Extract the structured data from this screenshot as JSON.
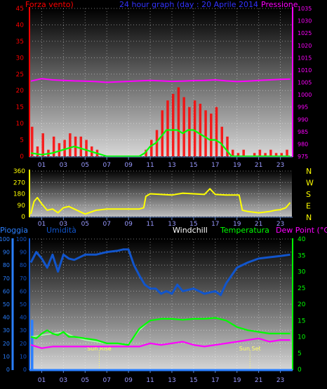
{
  "colors": {
    "wind": "#ff0000",
    "pressure": "#ff00ff",
    "title": "#3333ff",
    "direction": "#ffff00",
    "humidity": "#1155cc",
    "rain": "#2a7fff",
    "windchill": "#ffffff",
    "temperature": "#00ff00",
    "dewpoint": "#ff00ff",
    "sun": "#ffff66"
  },
  "chart_data": [
    {
      "type": "line",
      "title": "24 hour graph (day : 20 Aprile 2014",
      "left_label": "Forza vento)",
      "right_label": "Pressione",
      "ylim_left": [
        0,
        45
      ],
      "yticks_left": [
        "0",
        "5",
        "10",
        "15",
        "20",
        "25",
        "30",
        "35",
        "40",
        "45"
      ],
      "ylim_right": [
        975,
        1035
      ],
      "yticks_right": [
        "975",
        "980",
        "985",
        "990",
        "995",
        "1000",
        "1005",
        "1010",
        "1015",
        "1020",
        "1025",
        "1030",
        "1035"
      ],
      "x_ticks": [
        "01",
        "03",
        "05",
        "07",
        "09",
        "11",
        "13",
        "15",
        "17",
        "19",
        "21",
        "23"
      ],
      "series": [
        {
          "name": "Forza vento",
          "kind": "bars",
          "x": [
            0.0,
            0.5,
            1.0,
            1.5,
            2.0,
            2.5,
            3.0,
            3.5,
            4.0,
            4.5,
            5.0,
            5.5,
            6.0,
            6.5,
            7.0,
            7.5,
            8.0,
            8.5,
            9.0,
            9.5,
            10.0,
            10.5,
            11.0,
            11.5,
            12.0,
            12.5,
            13.0,
            13.5,
            14.0,
            14.5,
            15.0,
            15.5,
            16.0,
            16.5,
            17.0,
            17.5,
            18.0,
            18.5,
            19.0,
            19.5,
            20.0,
            20.5,
            21.0,
            21.5,
            22.0,
            22.5,
            23.0,
            23.5
          ],
          "y": [
            9,
            3,
            7,
            2,
            6,
            4,
            5,
            7,
            6,
            6,
            5,
            3,
            2,
            0,
            0,
            0,
            0,
            0,
            0,
            0,
            0,
            2,
            5,
            8,
            14,
            17,
            19,
            21,
            18,
            15,
            17,
            16,
            14,
            13,
            15,
            9,
            6,
            2,
            1,
            2,
            0,
            1,
            2,
            1,
            2,
            1,
            1,
            2
          ]
        },
        {
          "name": "Forza vento (media)",
          "kind": "line",
          "x": [
            0.0,
            1.0,
            2.0,
            3.0,
            4.0,
            5.0,
            6.0,
            7.0,
            8.0,
            9.0,
            10.0,
            10.5,
            11.0,
            11.5,
            12.0,
            12.5,
            13.0,
            13.5,
            14.0,
            14.5,
            15.0,
            15.5,
            16.0,
            16.5,
            17.0,
            17.5,
            18.0,
            18.5,
            19.0,
            20.0,
            21.0,
            22.0,
            23.0,
            23.9
          ],
          "y": [
            1,
            0.5,
            1,
            2,
            3,
            2,
            1,
            0,
            0,
            0,
            0,
            1,
            3,
            4,
            6,
            8,
            8,
            8,
            7,
            8,
            8,
            7,
            6,
            5,
            5,
            4,
            2,
            0,
            0,
            0,
            0,
            0,
            0,
            0
          ]
        },
        {
          "name": "Pressione",
          "axis": "right",
          "x": [
            0.0,
            1.0,
            2.0,
            3.0,
            4.0,
            5.0,
            6.0,
            7.0,
            8.0,
            9.0,
            10.0,
            11.0,
            12.0,
            13.0,
            14.0,
            15.0,
            16.0,
            17.0,
            18.0,
            19.0,
            20.0,
            21.0,
            22.0,
            23.0,
            23.9
          ],
          "y": [
            1005.5,
            1006.5,
            1006.0,
            1005.8,
            1005.6,
            1005.5,
            1005.3,
            1005.0,
            1005.2,
            1005.4,
            1005.6,
            1005.8,
            1005.6,
            1005.4,
            1005.5,
            1005.7,
            1005.8,
            1006.0,
            1005.6,
            1005.3,
            1005.5,
            1005.8,
            1006.0,
            1006.2,
            1006.3
          ]
        }
      ]
    },
    {
      "type": "line",
      "ylim": [
        0,
        360
      ],
      "yticks": [
        "0",
        "90",
        "180",
        "270",
        "360"
      ],
      "compass": [
        "N",
        "W",
        "S",
        "E",
        "N"
      ],
      "x_ticks": [
        "01",
        "03",
        "05",
        "07",
        "09",
        "11",
        "13",
        "15",
        "17",
        "19",
        "21",
        "23"
      ],
      "series": [
        {
          "name": "Direzione vento",
          "x": [
            0.0,
            0.3,
            0.6,
            1.0,
            1.5,
            2.0,
            2.5,
            3.0,
            3.5,
            4.0,
            4.5,
            5.0,
            6.0,
            7.0,
            8.0,
            9.0,
            10.0,
            10.4,
            10.6,
            11.0,
            12.0,
            13.0,
            14.0,
            15.0,
            16.0,
            16.5,
            17.0,
            18.0,
            19.0,
            19.2,
            19.5,
            20.0,
            21.0,
            22.0,
            22.5,
            23.0,
            23.5,
            23.9
          ],
          "y": [
            20,
            120,
            150,
            100,
            50,
            60,
            30,
            70,
            80,
            60,
            40,
            20,
            50,
            60,
            60,
            60,
            60,
            70,
            160,
            180,
            175,
            170,
            185,
            180,
            175,
            220,
            175,
            170,
            170,
            170,
            50,
            40,
            30,
            40,
            50,
            55,
            70,
            110
          ]
        }
      ]
    },
    {
      "type": "line",
      "labels": {
        "rain": "Pioggia",
        "humidity": "Umidità",
        "windchill": "Windchill",
        "temperature": "Temperatura",
        "dewpoint": "Dew Point (°C)"
      },
      "ylim_left": [
        0,
        100
      ],
      "yticks_left": [
        "0",
        "10",
        "20",
        "30",
        "40",
        "50",
        "60",
        "70",
        "80",
        "90",
        "100"
      ],
      "ylim_right": [
        0,
        40
      ],
      "yticks_right": [
        "0",
        "5",
        "10",
        "15",
        "20",
        "25",
        "30",
        "35",
        "40"
      ],
      "x_ticks": [
        "01",
        "03",
        "05",
        "07",
        "09",
        "11",
        "13",
        "15",
        "17",
        "19",
        "21",
        "23"
      ],
      "annotations": [
        {
          "text": "Sun Rise",
          "x": 6.3
        },
        {
          "text": "Sun Set",
          "x": 20.2
        }
      ],
      "series": [
        {
          "name": "Pioggia",
          "axis": "left",
          "kind": "bars",
          "x": [
            0.0,
            0.1
          ],
          "y": [
            38,
            38
          ]
        },
        {
          "name": "Umidità",
          "axis": "left",
          "x": [
            0.0,
            0.5,
            1.0,
            1.5,
            2.0,
            2.5,
            3.0,
            3.5,
            4.0,
            5.0,
            6.0,
            7.0,
            8.0,
            8.5,
            9.0,
            9.5,
            10.0,
            10.5,
            11.0,
            11.5,
            12.0,
            12.5,
            13.0,
            13.5,
            14.0,
            15.0,
            16.0,
            17.0,
            17.5,
            18.0,
            18.5,
            19.0,
            20.0,
            21.0,
            22.0,
            23.0,
            23.9
          ],
          "y": [
            82,
            90,
            85,
            78,
            88,
            75,
            88,
            85,
            84,
            88,
            88,
            90,
            91,
            92,
            92,
            80,
            72,
            65,
            62,
            62,
            58,
            60,
            58,
            65,
            60,
            62,
            58,
            60,
            57,
            66,
            72,
            78,
            82,
            85,
            86,
            87,
            88
          ]
        },
        {
          "name": "Windchill",
          "axis": "right",
          "x": [
            0.0,
            1.0,
            2.0,
            3.0,
            4.0,
            5.0,
            6.0,
            7.0,
            8.0,
            9.0,
            10.0,
            11.0,
            12.0,
            13.0,
            14.0,
            15.0,
            16.0,
            17.0,
            18.0,
            19.0,
            20.0,
            21.0,
            22.0,
            23.0,
            23.9
          ],
          "y": [
            10,
            10.5,
            11,
            11.5,
            10,
            9,
            8.5,
            8,
            8,
            7.5,
            12,
            15,
            15.5,
            15.5,
            15.3,
            15.5,
            15.5,
            15.8,
            15,
            13,
            12,
            11.5,
            11,
            11,
            11
          ]
        },
        {
          "name": "Temperatura",
          "axis": "right",
          "x": [
            0.0,
            0.5,
            1.0,
            1.5,
            2.0,
            2.5,
            3.0,
            3.5,
            4.0,
            5.0,
            6.0,
            7.0,
            8.0,
            9.0,
            10.0,
            11.0,
            12.0,
            13.0,
            14.0,
            15.0,
            16.0,
            17.0,
            18.0,
            19.0,
            20.0,
            21.0,
            22.0,
            23.0,
            23.9
          ],
          "y": [
            10,
            9.5,
            11,
            12,
            11,
            10.5,
            11.5,
            10,
            10,
            9.5,
            9,
            8,
            8,
            7.5,
            12.5,
            15,
            15.5,
            15.5,
            15.2,
            15.5,
            15.5,
            15.8,
            15,
            13,
            12,
            11.5,
            11,
            11,
            11
          ]
        },
        {
          "name": "Dew Point",
          "axis": "right",
          "x": [
            0.0,
            1.0,
            2.0,
            3.0,
            4.0,
            5.0,
            6.0,
            7.0,
            8.0,
            9.0,
            10.0,
            11.0,
            12.0,
            13.0,
            14.0,
            15.0,
            16.0,
            17.0,
            18.0,
            19.0,
            20.0,
            21.0,
            22.0,
            23.0,
            23.9
          ],
          "y": [
            7.5,
            6.5,
            7,
            7,
            7,
            7,
            7,
            7,
            7,
            7,
            7,
            8,
            7.5,
            8,
            8.5,
            7.5,
            7,
            7.5,
            8,
            8.5,
            9,
            9.5,
            8.5,
            9,
            9
          ]
        }
      ]
    }
  ]
}
